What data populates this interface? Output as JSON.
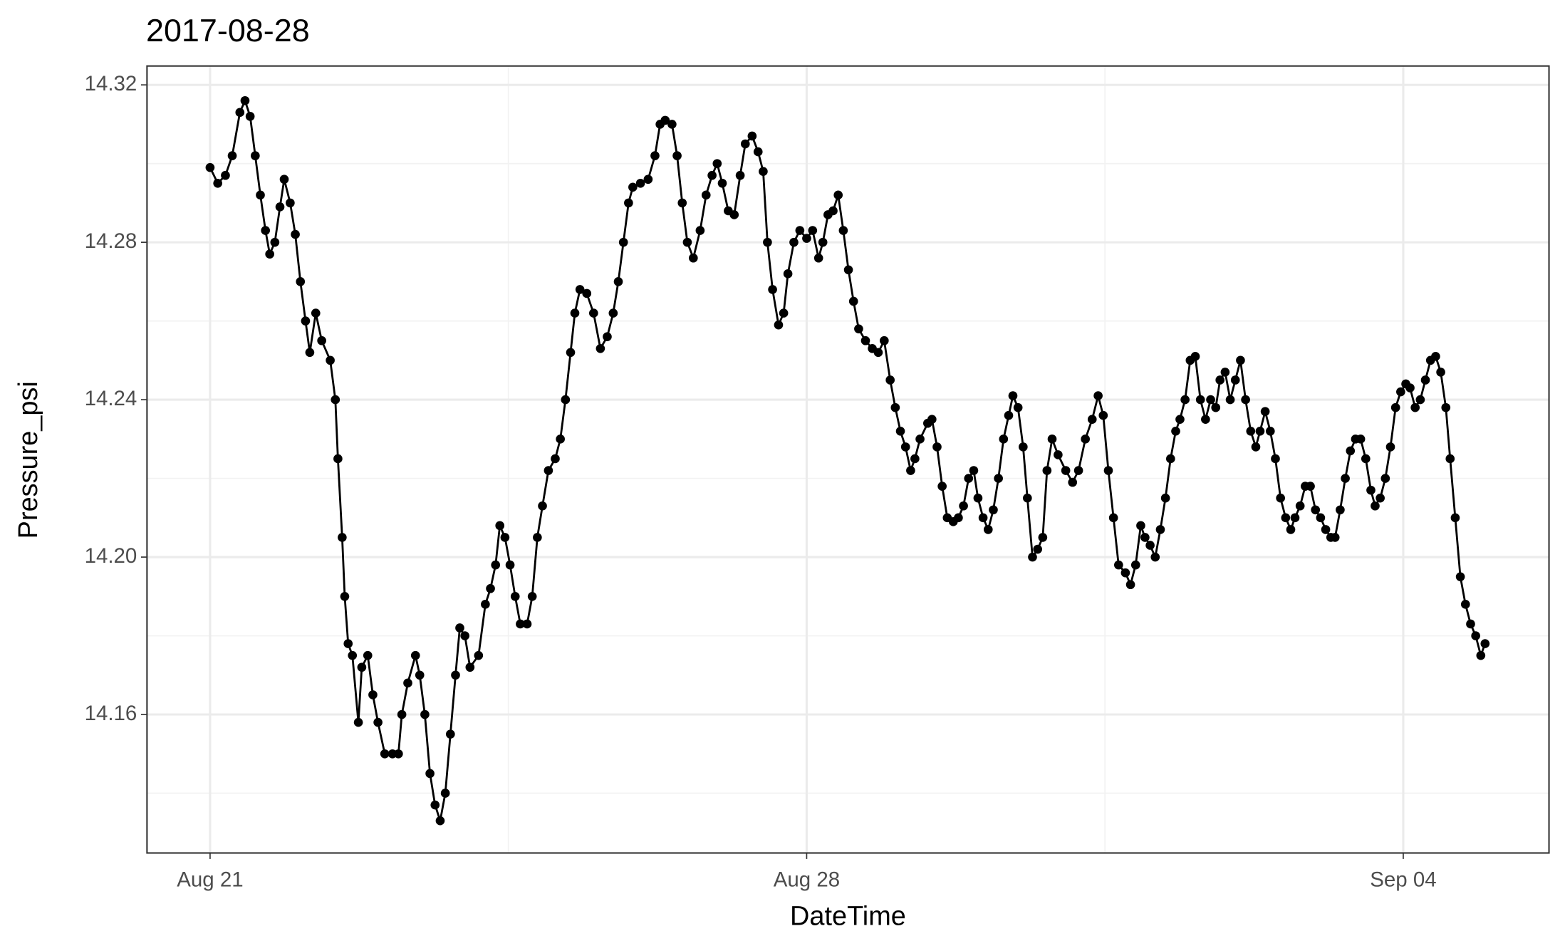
{
  "chart_data": {
    "type": "scatter-line",
    "title": "2017-08-28",
    "x_label": "DateTime",
    "y_label": "Pressure_psi",
    "color": "#000000",
    "grid": true,
    "xlim": [
      -0.74,
      15.71
    ],
    "ylim": [
      14.1248,
      14.3248
    ],
    "xticks": [
      {
        "value": 0,
        "label": "Aug 21"
      },
      {
        "value": 7,
        "label": "Aug 28"
      },
      {
        "value": 14,
        "label": "Sep 04"
      }
    ],
    "x_minor_ticks": [
      3.5,
      10.5
    ],
    "yticks": [
      14.16,
      {
        "value": 14.2,
        "label": "14.20"
      },
      14.24,
      14.28,
      14.32
    ],
    "y_minor_ticks": [
      14.14,
      14.18,
      14.22,
      14.26,
      14.3
    ],
    "x": [
      0,
      0.09,
      0.18,
      0.26,
      0.35,
      0.41,
      0.47,
      0.53,
      0.59,
      0.65,
      0.7,
      0.76,
      0.82,
      0.87,
      0.94,
      1.0,
      1.06,
      1.12,
      1.17,
      1.24,
      1.31,
      1.41,
      1.47,
      1.5,
      1.55,
      1.58,
      1.62,
      1.67,
      1.74,
      1.78,
      1.85,
      1.91,
      1.97,
      2.05,
      2.14,
      2.21,
      2.25,
      2.32,
      2.41,
      2.46,
      2.52,
      2.58,
      2.64,
      2.7,
      2.76,
      2.82,
      2.88,
      2.93,
      2.99,
      3.05,
      3.15,
      3.23,
      3.29,
      3.35,
      3.4,
      3.46,
      3.52,
      3.58,
      3.64,
      3.72,
      3.78,
      3.84,
      3.9,
      3.97,
      4.05,
      4.11,
      4.17,
      4.23,
      4.28,
      4.34,
      4.42,
      4.5,
      4.58,
      4.66,
      4.73,
      4.79,
      4.85,
      4.91,
      4.96,
      5.05,
      5.14,
      5.22,
      5.28,
      5.34,
      5.42,
      5.48,
      5.54,
      5.6,
      5.67,
      5.75,
      5.82,
      5.89,
      5.95,
      6.01,
      6.08,
      6.15,
      6.22,
      6.28,
      6.36,
      6.43,
      6.49,
      6.54,
      6.6,
      6.67,
      6.73,
      6.78,
      6.85,
      6.92,
      7.0,
      7.07,
      7.14,
      7.19,
      7.25,
      7.31,
      7.37,
      7.43,
      7.49,
      7.55,
      7.61,
      7.69,
      7.77,
      7.84,
      7.91,
      7.98,
      8.04,
      8.1,
      8.16,
      8.22,
      8.27,
      8.33,
      8.42,
      8.47,
      8.53,
      8.59,
      8.65,
      8.72,
      8.78,
      8.84,
      8.9,
      8.96,
      9.01,
      9.07,
      9.13,
      9.19,
      9.25,
      9.31,
      9.37,
      9.42,
      9.48,
      9.54,
      9.59,
      9.65,
      9.71,
      9.77,
      9.82,
      9.88,
      9.95,
      10.04,
      10.12,
      10.19,
      10.27,
      10.35,
      10.42,
      10.48,
      10.54,
      10.6,
      10.66,
      10.74,
      10.8,
      10.86,
      10.92,
      10.97,
      11.03,
      11.09,
      11.15,
      11.21,
      11.27,
      11.33,
      11.38,
      11.44,
      11.5,
      11.56,
      11.62,
      11.68,
      11.74,
      11.8,
      11.85,
      11.91,
      11.97,
      12.03,
      12.09,
      12.15,
      12.21,
      12.27,
      12.32,
      12.38,
      12.44,
      12.5,
      12.56,
      12.62,
      12.68,
      12.73,
      12.79,
      12.85,
      12.91,
      12.97,
      13.03,
      13.09,
      13.15,
      13.2,
      13.26,
      13.32,
      13.38,
      13.44,
      13.5,
      13.56,
      13.62,
      13.67,
      13.73,
      13.79,
      13.85,
      13.91,
      13.97,
      14.03,
      14.08,
      14.14,
      14.2,
      14.26,
      14.32,
      14.38,
      14.44,
      14.5,
      14.55,
      14.61,
      14.67,
      14.73,
      14.79,
      14.85,
      14.91,
      14.96
    ],
    "values": [
      14.299,
      14.295,
      14.297,
      14.302,
      14.313,
      14.316,
      14.312,
      14.302,
      14.292,
      14.283,
      14.277,
      14.28,
      14.289,
      14.296,
      14.29,
      14.282,
      14.27,
      14.26,
      14.252,
      14.262,
      14.255,
      14.25,
      14.24,
      14.225,
      14.205,
      14.19,
      14.178,
      14.175,
      14.158,
      14.172,
      14.175,
      14.165,
      14.158,
      14.15,
      14.15,
      14.15,
      14.16,
      14.168,
      14.175,
      14.17,
      14.16,
      14.145,
      14.137,
      14.133,
      14.14,
      14.155,
      14.17,
      14.182,
      14.18,
      14.172,
      14.175,
      14.188,
      14.192,
      14.198,
      14.208,
      14.205,
      14.198,
      14.19,
      14.183,
      14.183,
      14.19,
      14.205,
      14.213,
      14.222,
      14.225,
      14.23,
      14.24,
      14.252,
      14.262,
      14.268,
      14.267,
      14.262,
      14.253,
      14.256,
      14.262,
      14.27,
      14.28,
      14.29,
      14.294,
      14.295,
      14.296,
      14.302,
      14.31,
      14.311,
      14.31,
      14.302,
      14.29,
      14.28,
      14.276,
      14.283,
      14.292,
      14.297,
      14.3,
      14.295,
      14.288,
      14.287,
      14.297,
      14.305,
      14.307,
      14.303,
      14.298,
      14.28,
      14.268,
      14.259,
      14.262,
      14.272,
      14.28,
      14.283,
      14.281,
      14.283,
      14.276,
      14.28,
      14.287,
      14.288,
      14.292,
      14.283,
      14.273,
      14.265,
      14.258,
      14.255,
      14.253,
      14.252,
      14.255,
      14.245,
      14.238,
      14.232,
      14.228,
      14.222,
      14.225,
      14.23,
      14.234,
      14.235,
      14.228,
      14.218,
      14.21,
      14.209,
      14.21,
      14.213,
      14.22,
      14.222,
      14.215,
      14.21,
      14.207,
      14.212,
      14.22,
      14.23,
      14.236,
      14.241,
      14.238,
      14.228,
      14.215,
      14.2,
      14.202,
      14.205,
      14.222,
      14.23,
      14.226,
      14.222,
      14.219,
      14.222,
      14.23,
      14.235,
      14.241,
      14.236,
      14.222,
      14.21,
      14.198,
      14.196,
      14.193,
      14.198,
      14.208,
      14.205,
      14.203,
      14.2,
      14.207,
      14.215,
      14.225,
      14.232,
      14.235,
      14.24,
      14.25,
      14.251,
      14.24,
      14.235,
      14.24,
      14.238,
      14.245,
      14.247,
      14.24,
      14.245,
      14.25,
      14.24,
      14.232,
      14.228,
      14.232,
      14.237,
      14.232,
      14.225,
      14.215,
      14.21,
      14.207,
      14.21,
      14.213,
      14.218,
      14.218,
      14.212,
      14.21,
      14.207,
      14.205,
      14.205,
      14.212,
      14.22,
      14.227,
      14.23,
      14.23,
      14.225,
      14.217,
      14.213,
      14.215,
      14.22,
      14.228,
      14.238,
      14.242,
      14.244,
      14.243,
      14.238,
      14.24,
      14.245,
      14.25,
      14.251,
      14.247,
      14.238,
      14.225,
      14.21,
      14.195,
      14.188,
      14.183,
      14.18,
      14.175,
      14.178
    ]
  }
}
